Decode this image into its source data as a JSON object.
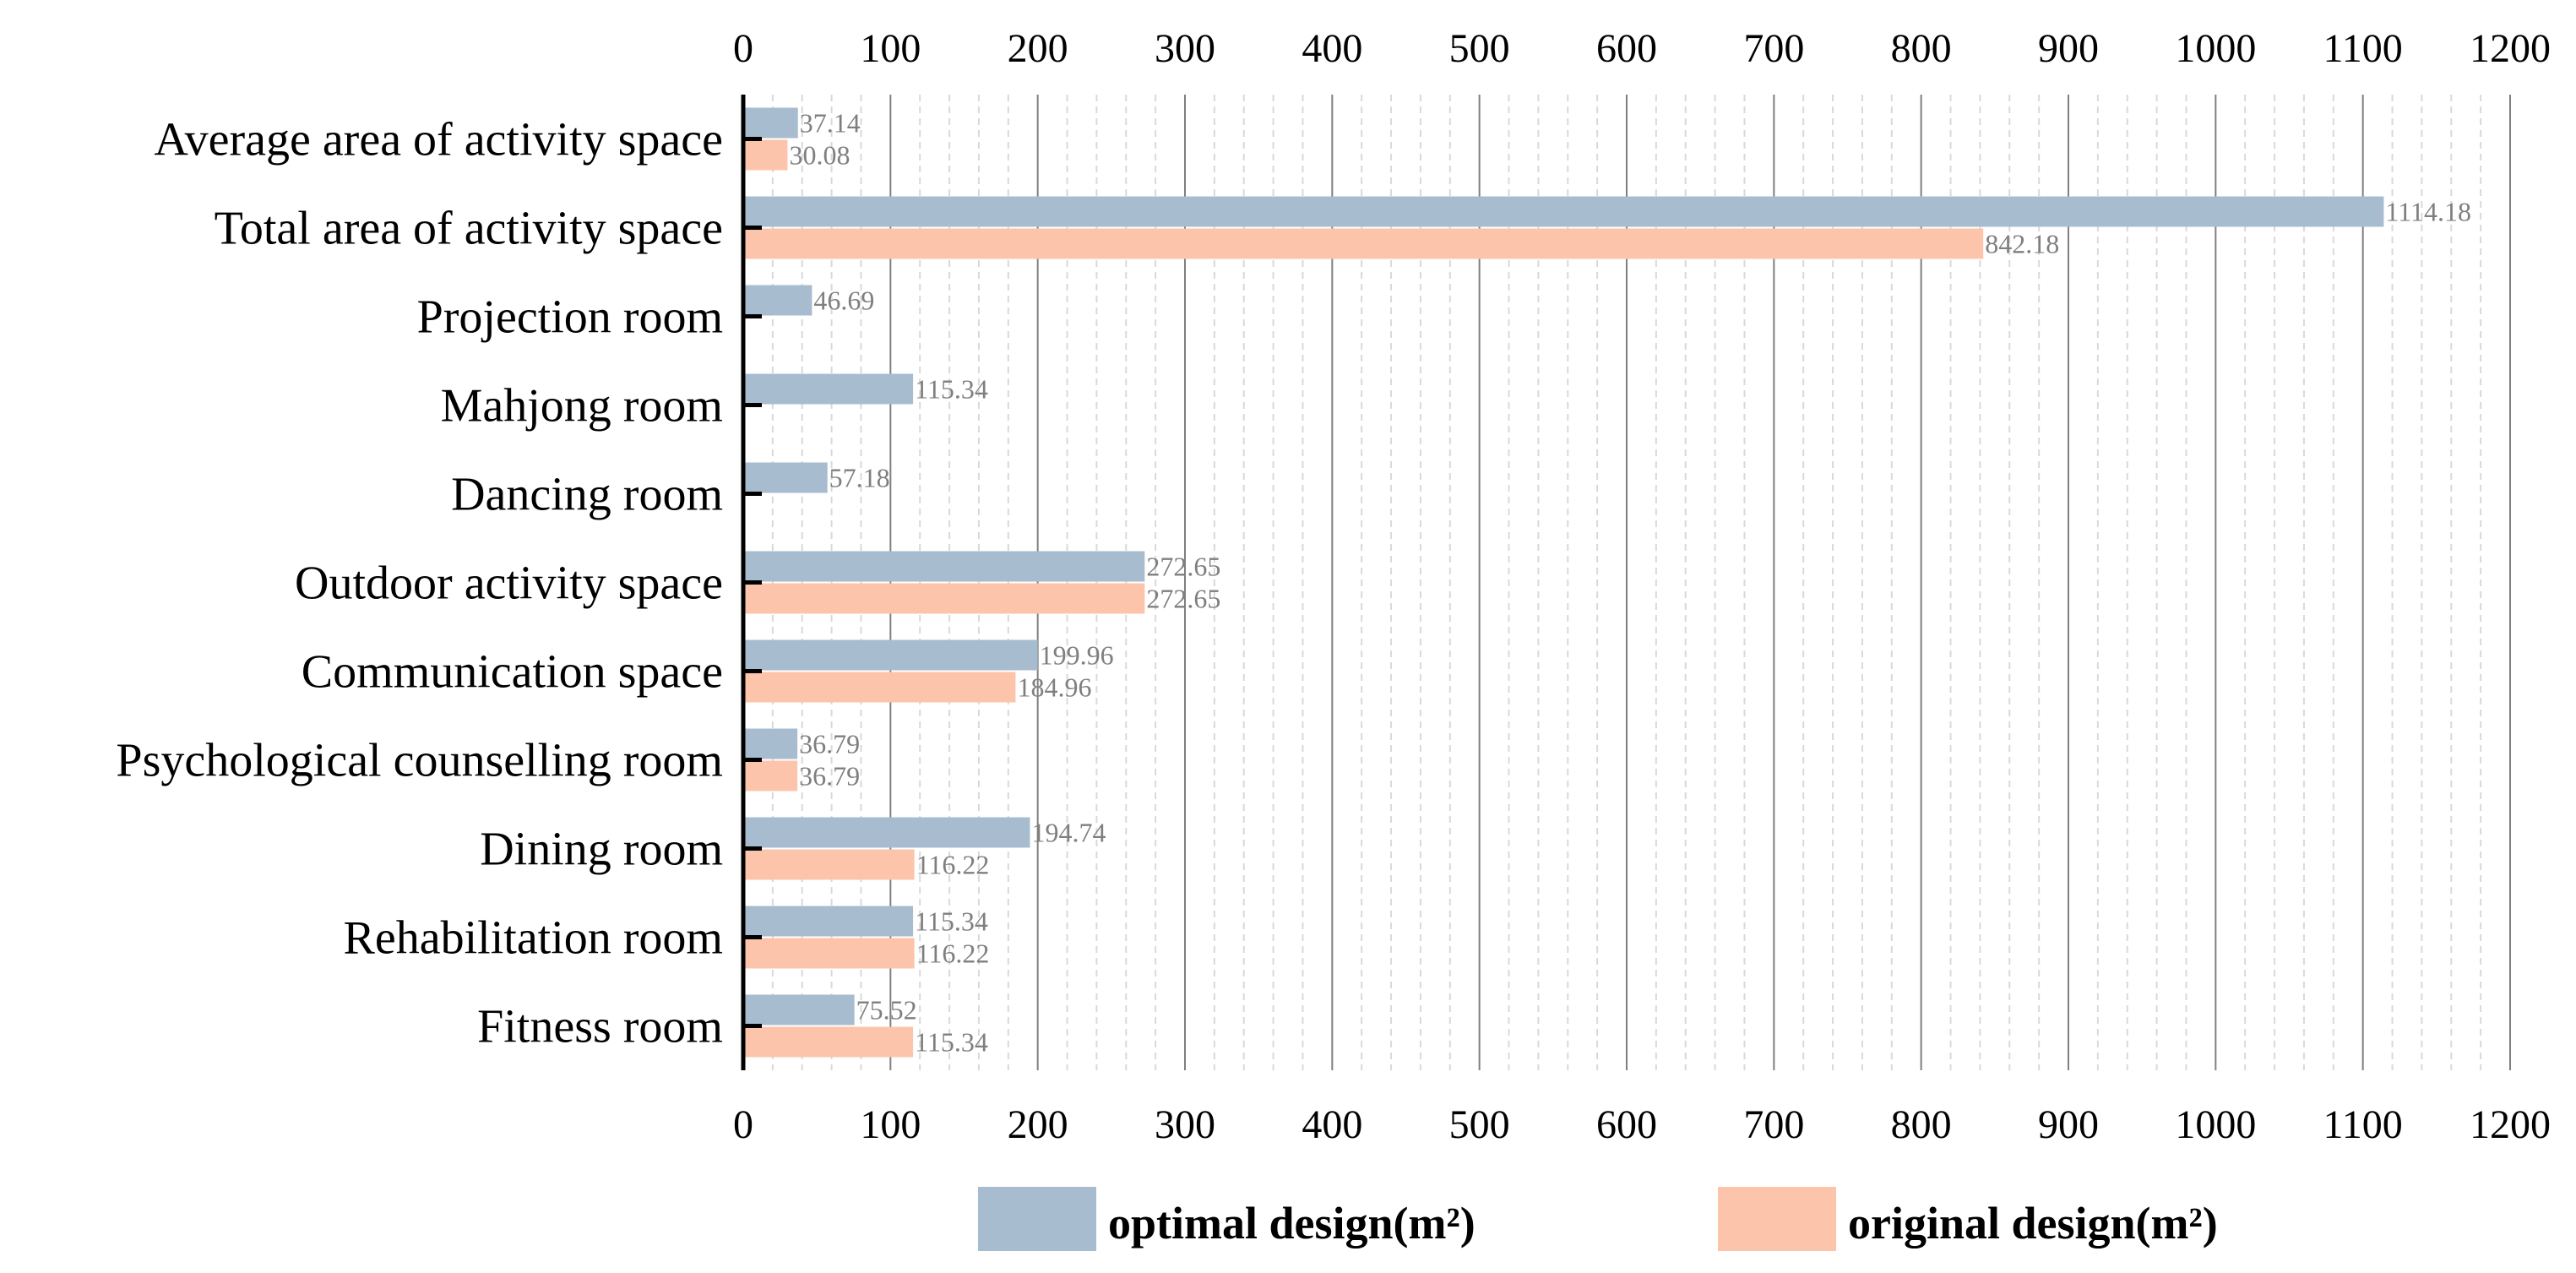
{
  "chart_data": {
    "type": "bar",
    "orientation": "horizontal",
    "categories": [
      "Average area of activity space",
      "Total area of activity space",
      "Projection room",
      "Mahjong room",
      "Dancing room",
      "Outdoor activity space",
      "Communication space",
      "Psychological counselling room",
      "Dining room",
      "Rehabilitation room",
      "Fitness room"
    ],
    "series": [
      {
        "name": "optimal design(m²)",
        "color": "#a8bccf",
        "values": [
          37.14,
          1114.18,
          46.69,
          115.34,
          57.18,
          272.65,
          199.96,
          36.79,
          194.74,
          115.34,
          75.52
        ],
        "labels": [
          "37.14",
          "1114.18",
          "46.69",
          "115.34",
          "57.18",
          "272.65",
          "199.96",
          "36.79",
          "194.74",
          "115.34",
          "75.52"
        ]
      },
      {
        "name": "original design(m²)",
        "color": "#fcc4ab",
        "values": [
          30.08,
          842.18,
          null,
          null,
          null,
          272.65,
          184.96,
          36.79,
          116.22,
          116.22,
          115.34
        ],
        "labels": [
          "30.08",
          "842.18",
          null,
          null,
          null,
          "272.65",
          "184.96",
          "36.79",
          "116.22",
          "116.22",
          "115.34"
        ]
      }
    ],
    "x_ticks": [
      "0",
      "100",
      "200",
      "300",
      "400",
      "500",
      "600",
      "700",
      "800",
      "900",
      "1000",
      "1100",
      "1200"
    ],
    "xlim": [
      0,
      1200
    ],
    "major_step": 100,
    "minor_step": 20,
    "grid": true,
    "legend_position": "bottom-center",
    "title": "",
    "xlabel": "",
    "ylabel": ""
  }
}
